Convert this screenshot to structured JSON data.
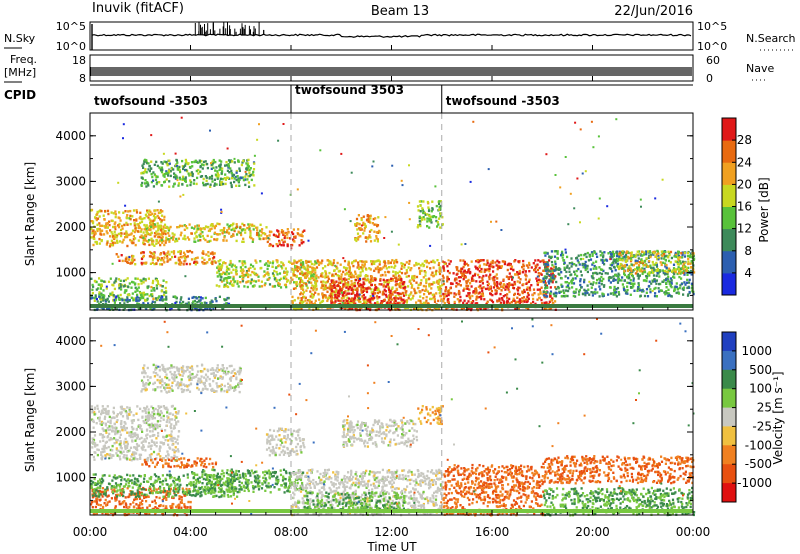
{
  "header": {
    "title": "Inuvik (fitACF)",
    "beam": "Beam 13",
    "date": "22/Jun/2016"
  },
  "side_labels": {
    "nsky": "N.Sky",
    "nsearch": "N.Search",
    "freq": "Freq.",
    "freq_unit": "[MHz]",
    "nave": "Nave",
    "cpid": "CPID"
  },
  "mini_axes": {
    "noise_left_ticks": [
      "10^5",
      "10^0"
    ],
    "noise_right_ticks": [
      "10^5",
      "10^0"
    ],
    "freq_left_ticks": [
      "18",
      "8"
    ],
    "nave_right_ticks": [
      "60",
      "0"
    ]
  },
  "cpid_segments": [
    {
      "label": "twofsound -3503",
      "start_hour": 0,
      "end_hour": 8
    },
    {
      "label": "twofsound 3503",
      "start_hour": 8,
      "end_hour": 14
    },
    {
      "label": "twofsound -3503",
      "start_hour": 14,
      "end_hour": 24
    }
  ],
  "power_panel": {
    "ylabel": "Slant Range [km]",
    "yticks": [
      "1000",
      "2000",
      "3000",
      "4000"
    ],
    "colorbar_label": "Power [dB]",
    "colorbar_ticks": [
      "4",
      "8",
      "12",
      "16",
      "20",
      "24",
      "28"
    ],
    "colorbar_colors": [
      "#1a2ae0",
      "#2c5fb0",
      "#3d8a5a",
      "#58c23a",
      "#c8d820",
      "#f0a020",
      "#e86a10",
      "#e01818"
    ]
  },
  "velocity_panel": {
    "ylabel": "Slant Range [km]",
    "yticks": [
      "1000",
      "2000",
      "3000",
      "4000"
    ],
    "colorbar_label": "Velocity [m s⁻¹]",
    "colorbar_ticks": [
      "1000",
      "500",
      "100",
      "25",
      "-25",
      "-100",
      "-500",
      "-1000"
    ],
    "colorbar_colors": [
      "#2040c0",
      "#3a70c0",
      "#3a8a4a",
      "#78c840",
      "#c8c8c0",
      "#f0c040",
      "#f08020",
      "#e85010",
      "#e01010"
    ]
  },
  "x_axis": {
    "ticks": [
      "00:00",
      "04:00",
      "08:00",
      "12:00",
      "16:00",
      "20:00",
      "00:00"
    ],
    "label": "Time UT"
  },
  "chart_data": {
    "type": "heatmap",
    "title": "Inuvik (fitACF)",
    "subtitle": "Beam 13",
    "date": "22/Jun/2016",
    "xlabel": "Time UT",
    "ylabel": "Slant Range [km]",
    "xlim_hours": [
      0,
      24
    ],
    "ylim_km": [
      180,
      4500
    ],
    "panels": [
      {
        "name": "power",
        "units": "Power [dB]",
        "scale_range": [
          0,
          30
        ],
        "regions": [
          {
            "t0": 0.0,
            "t1": 3.0,
            "r0": 1600,
            "r1": 2400,
            "level": 20
          },
          {
            "t0": 0.0,
            "t1": 3.0,
            "r0": 400,
            "r1": 900,
            "level": 14
          },
          {
            "t0": 0.0,
            "t1": 5.5,
            "r0": 200,
            "r1": 500,
            "level": 8
          },
          {
            "t0": 1.0,
            "t1": 5.0,
            "r0": 1200,
            "r1": 1500,
            "level": 22
          },
          {
            "t0": 2.0,
            "t1": 7.0,
            "r0": 1700,
            "r1": 2100,
            "level": 18
          },
          {
            "t0": 2.0,
            "t1": 6.5,
            "r0": 2900,
            "r1": 3500,
            "level": 12
          },
          {
            "t0": 5.0,
            "t1": 9.0,
            "r0": 700,
            "r1": 1300,
            "level": 16
          },
          {
            "t0": 7.0,
            "t1": 8.5,
            "r0": 1600,
            "r1": 2000,
            "level": 24
          },
          {
            "t0": 8.0,
            "t1": 14.0,
            "r0": 200,
            "r1": 1300,
            "level": 20
          },
          {
            "t0": 9.5,
            "t1": 12.5,
            "r0": 200,
            "r1": 900,
            "level": 28
          },
          {
            "t0": 10.5,
            "t1": 11.5,
            "r0": 1700,
            "r1": 2300,
            "level": 20
          },
          {
            "t0": 13.0,
            "t1": 14.0,
            "r0": 2000,
            "r1": 2600,
            "level": 14
          },
          {
            "t0": 14.0,
            "t1": 18.5,
            "r0": 200,
            "r1": 1300,
            "level": 26
          },
          {
            "t0": 18.0,
            "t1": 24.0,
            "r0": 500,
            "r1": 1500,
            "level": 10
          },
          {
            "t0": 21.0,
            "t1": 24.0,
            "r0": 1000,
            "r1": 1500,
            "level": 18
          }
        ]
      },
      {
        "name": "velocity",
        "units": "Velocity [m s⁻¹]",
        "scale_range": [
          -1000,
          1000
        ],
        "regions": [
          {
            "t0": 0.0,
            "t1": 3.5,
            "r0": 1400,
            "r1": 2600,
            "level": 0
          },
          {
            "t0": 0.0,
            "t1": 4.0,
            "r0": 200,
            "r1": 800,
            "level": -500
          },
          {
            "t0": 0.0,
            "t1": 6.0,
            "r0": 600,
            "r1": 1100,
            "level": 100
          },
          {
            "t0": 2.0,
            "t1": 6.0,
            "r0": 2900,
            "r1": 3500,
            "level": 0
          },
          {
            "t0": 2.0,
            "t1": 5.0,
            "r0": 1250,
            "r1": 1450,
            "level": -500
          },
          {
            "t0": 4.0,
            "t1": 8.5,
            "r0": 700,
            "r1": 1200,
            "level": 100
          },
          {
            "t0": 7.0,
            "t1": 8.5,
            "r0": 1500,
            "r1": 2100,
            "level": 0
          },
          {
            "t0": 8.0,
            "t1": 14.0,
            "r0": 200,
            "r1": 1200,
            "level": 0
          },
          {
            "t0": 8.5,
            "t1": 12.5,
            "r0": 300,
            "r1": 700,
            "level": 100
          },
          {
            "t0": 10.0,
            "t1": 13.0,
            "r0": 1700,
            "r1": 2300,
            "level": 0
          },
          {
            "t0": 13.0,
            "t1": 14.0,
            "r0": 2200,
            "r1": 2600,
            "level": -100
          },
          {
            "t0": 14.0,
            "t1": 18.0,
            "r0": 200,
            "r1": 1300,
            "level": -500
          },
          {
            "t0": 18.0,
            "t1": 24.0,
            "r0": 900,
            "r1": 1500,
            "level": -500
          },
          {
            "t0": 18.0,
            "t1": 24.0,
            "r0": 200,
            "r1": 800,
            "level": 100
          }
        ]
      }
    ]
  }
}
